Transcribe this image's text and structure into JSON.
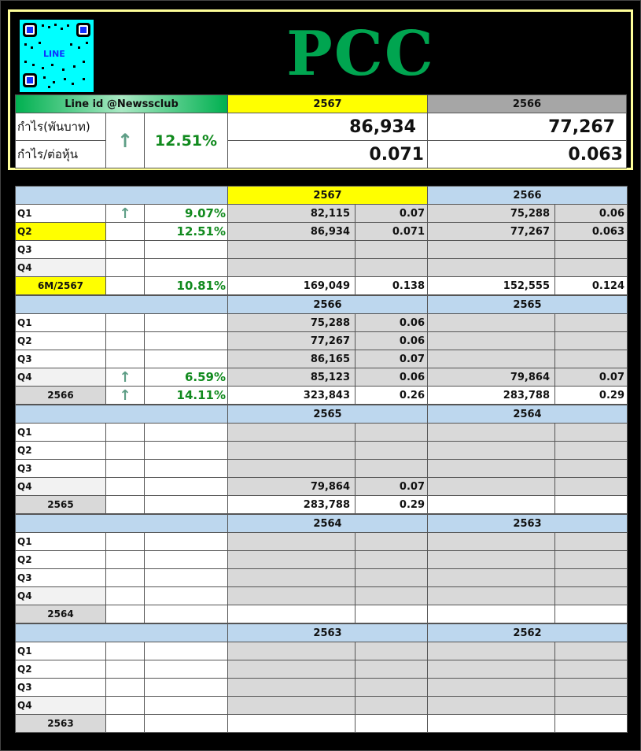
{
  "ticker": "PCC",
  "qr": {
    "label": "LINE"
  },
  "summary": {
    "line_id": "Line id @Newssclub",
    "year_current": "2567",
    "year_prev": "2566",
    "profit_label": "กำไร(พันบาท)",
    "eps_label": "กำไร/ต่อหุ้น",
    "trend_icon": "up-arrow",
    "change": "12.51%",
    "profit_current": "86,934",
    "profit_prev": "77,267",
    "eps_current": "0.071",
    "eps_prev": "0.063"
  },
  "colors": {
    "yellow": "#ffff00",
    "blue_header": "#bdd7ee",
    "grey": "#d9d9d9",
    "green_text": "#118a1e",
    "title_green": "#00a550"
  },
  "blocks": [
    {
      "year_a": "2567",
      "year_b": "2566",
      "rows": [
        {
          "label": "Q1",
          "arrow": "↑",
          "pct": "9.07%",
          "a1": "82,115",
          "a2": "0.07",
          "b1": "75,288",
          "b2": "0.06"
        },
        {
          "label": "Q2",
          "arrow": "",
          "pct": "12.51%",
          "a1": "86,934",
          "a2": "0.071",
          "b1": "77,267",
          "b2": "0.063"
        },
        {
          "label": "Q3",
          "arrow": "",
          "pct": "",
          "a1": "",
          "a2": "",
          "b1": "",
          "b2": ""
        },
        {
          "label": "Q4",
          "arrow": "",
          "pct": "",
          "a1": "",
          "a2": "",
          "b1": "",
          "b2": ""
        },
        {
          "label": "6M/2567",
          "arrow": "",
          "pct": "10.81%",
          "a1": "169,049",
          "a2": "0.138",
          "b1": "152,555",
          "b2": "0.124"
        }
      ]
    },
    {
      "year_a": "2566",
      "year_b": "2565",
      "rows": [
        {
          "label": "Q1",
          "arrow": "",
          "pct": "",
          "a1": "75,288",
          "a2": "0.06",
          "b1": "",
          "b2": ""
        },
        {
          "label": "Q2",
          "arrow": "",
          "pct": "",
          "a1": "77,267",
          "a2": "0.06",
          "b1": "",
          "b2": ""
        },
        {
          "label": "Q3",
          "arrow": "",
          "pct": "",
          "a1": "86,165",
          "a2": "0.07",
          "b1": "",
          "b2": ""
        },
        {
          "label": "Q4",
          "arrow": "↑",
          "pct": "6.59%",
          "a1": "85,123",
          "a2": "0.06",
          "b1": "79,864",
          "b2": "0.07"
        },
        {
          "label": "2566",
          "arrow": "↑",
          "pct": "14.11%",
          "a1": "323,843",
          "a2": "0.26",
          "b1": "283,788",
          "b2": "0.29"
        }
      ]
    },
    {
      "year_a": "2565",
      "year_b": "2564",
      "rows": [
        {
          "label": "Q1",
          "arrow": "",
          "pct": "",
          "a1": "",
          "a2": "",
          "b1": "",
          "b2": ""
        },
        {
          "label": "Q2",
          "arrow": "",
          "pct": "",
          "a1": "",
          "a2": "",
          "b1": "",
          "b2": ""
        },
        {
          "label": "Q3",
          "arrow": "",
          "pct": "",
          "a1": "",
          "a2": "",
          "b1": "",
          "b2": ""
        },
        {
          "label": "Q4",
          "arrow": "",
          "pct": "",
          "a1": "79,864",
          "a2": "0.07",
          "b1": "",
          "b2": ""
        },
        {
          "label": "2565",
          "arrow": "",
          "pct": "",
          "a1": "283,788",
          "a2": "0.29",
          "b1": "",
          "b2": ""
        }
      ]
    },
    {
      "year_a": "2564",
      "year_b": "2563",
      "rows": [
        {
          "label": "Q1",
          "arrow": "",
          "pct": "",
          "a1": "",
          "a2": "",
          "b1": "",
          "b2": ""
        },
        {
          "label": "Q2",
          "arrow": "",
          "pct": "",
          "a1": "",
          "a2": "",
          "b1": "",
          "b2": ""
        },
        {
          "label": "Q3",
          "arrow": "",
          "pct": "",
          "a1": "",
          "a2": "",
          "b1": "",
          "b2": ""
        },
        {
          "label": "Q4",
          "arrow": "",
          "pct": "",
          "a1": "",
          "a2": "",
          "b1": "",
          "b2": ""
        },
        {
          "label": "2564",
          "arrow": "",
          "pct": "",
          "a1": "",
          "a2": "",
          "b1": "",
          "b2": ""
        }
      ]
    },
    {
      "year_a": "2563",
      "year_b": "2562",
      "rows": [
        {
          "label": "Q1",
          "arrow": "",
          "pct": "",
          "a1": "",
          "a2": "",
          "b1": "",
          "b2": ""
        },
        {
          "label": "Q2",
          "arrow": "",
          "pct": "",
          "a1": "",
          "a2": "",
          "b1": "",
          "b2": ""
        },
        {
          "label": "Q3",
          "arrow": "",
          "pct": "",
          "a1": "",
          "a2": "",
          "b1": "",
          "b2": ""
        },
        {
          "label": "Q4",
          "arrow": "",
          "pct": "",
          "a1": "",
          "a2": "",
          "b1": "",
          "b2": ""
        },
        {
          "label": "2563",
          "arrow": "",
          "pct": "",
          "a1": "",
          "a2": "",
          "b1": "",
          "b2": ""
        }
      ]
    }
  ]
}
